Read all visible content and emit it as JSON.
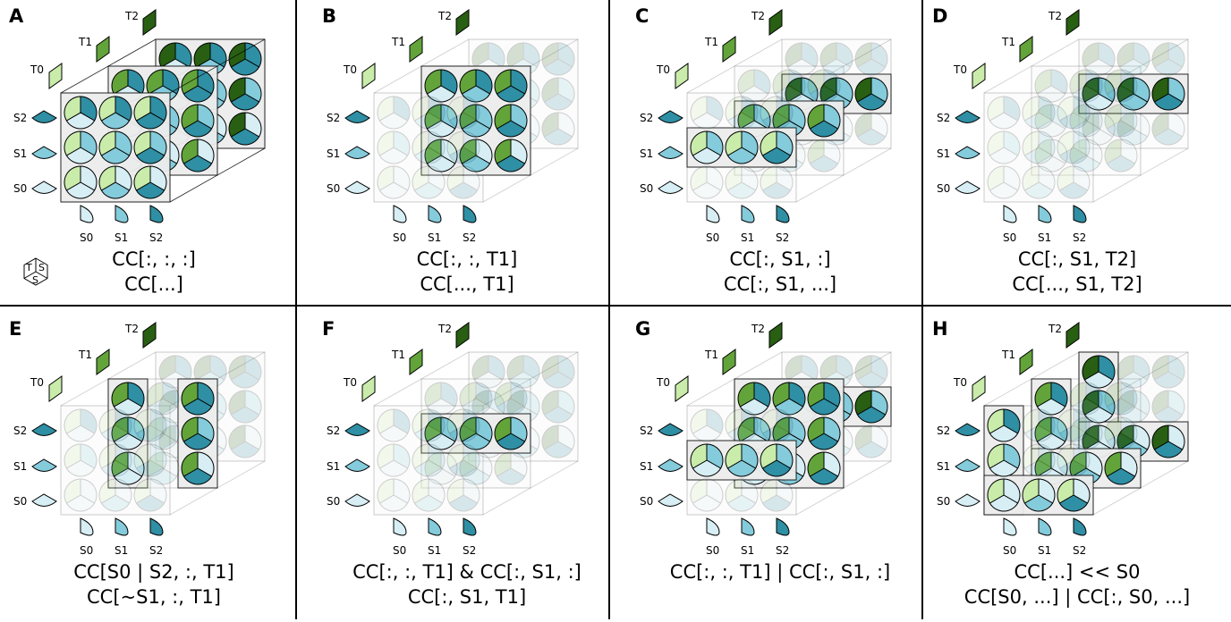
{
  "colors": {
    "S0": "#d6eef4",
    "S1": "#84cbdb",
    "S2": "#2f8fa4",
    "T0": "#c9ecaa",
    "T1": "#62a43a",
    "T2": "#285f12",
    "box_fill": "#ececec",
    "faded_fill": "#f2f2f2",
    "stroke": "#000000"
  },
  "axis_labels": {
    "t": [
      "T0",
      "T1",
      "T2"
    ],
    "s_rows": [
      "S0",
      "S1",
      "S2"
    ],
    "s_cols": [
      "S0",
      "S1",
      "S2"
    ]
  },
  "legend_glyph": {
    "top_left": "T",
    "top_right": "S",
    "bottom": "S"
  },
  "panels": [
    {
      "label": "A",
      "caption1": "CC[:, :, :]",
      "caption2": "CC[...]"
    },
    {
      "label": "B",
      "caption1": "CC[:, :, T1]",
      "caption2": "CC[..., T1]"
    },
    {
      "label": "C",
      "caption1": "CC[:, S1, :]",
      "caption2": "CC[:, S1, ...]"
    },
    {
      "label": "D",
      "caption1": "CC[:, S1, T2]",
      "caption2": "CC[..., S1, T2]"
    },
    {
      "label": "E",
      "caption1": "CC[S0 | S2, :, T1]",
      "caption2": "CC[~S1, :, T1]"
    },
    {
      "label": "F",
      "caption1": "CC[:, :, T1] & CC[:, S1, :]",
      "caption2": "CC[:, S1, T1]"
    },
    {
      "label": "G",
      "caption1": "CC[:, :, T1] | CC[:, S1, :]",
      "caption2": ""
    },
    {
      "label": "H",
      "caption1": "CC[...] << S0",
      "caption2": "CC[S0, ...] | CC[:, S0, ...]"
    }
  ]
}
